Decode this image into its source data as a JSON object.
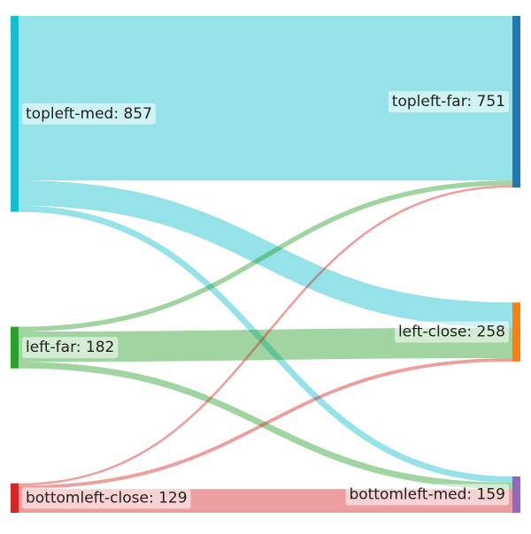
{
  "chart_data": {
    "type": "sankey",
    "nodes": [
      {
        "id": "topleft-med",
        "label": "topleft-med: 857",
        "value": 857,
        "color": "#17becf",
        "side": "left"
      },
      {
        "id": "left-far",
        "label": "left-far: 182",
        "value": 182,
        "color": "#2ca02c",
        "side": "left"
      },
      {
        "id": "bottomleft-close",
        "label": "bottomleft-close: 129",
        "value": 129,
        "color": "#d62728",
        "side": "left"
      },
      {
        "id": "topleft-far",
        "label": "topleft-far: 751",
        "value": 751,
        "color": "#1f77b4",
        "side": "right"
      },
      {
        "id": "left-close",
        "label": "left-close: 258",
        "value": 258,
        "color": "#ff7f0e",
        "side": "right"
      },
      {
        "id": "bottomleft-med",
        "label": "bottomleft-med: 159",
        "value": 159,
        "color": "#9467bd",
        "side": "right"
      }
    ],
    "links": [
      {
        "source": "topleft-med",
        "target": "topleft-far",
        "value": 720
      },
      {
        "source": "topleft-med",
        "target": "left-close",
        "value": 110
      },
      {
        "source": "topleft-med",
        "target": "bottomleft-med",
        "value": 27
      },
      {
        "source": "left-far",
        "target": "topleft-far",
        "value": 21
      },
      {
        "source": "left-far",
        "target": "left-close",
        "value": 133
      },
      {
        "source": "left-far",
        "target": "bottomleft-med",
        "value": 28
      },
      {
        "source": "bottomleft-close",
        "target": "topleft-far",
        "value": 10
      },
      {
        "source": "bottomleft-close",
        "target": "left-close",
        "value": 15
      },
      {
        "source": "bottomleft-close",
        "target": "bottomleft-med",
        "value": 104
      }
    ]
  }
}
